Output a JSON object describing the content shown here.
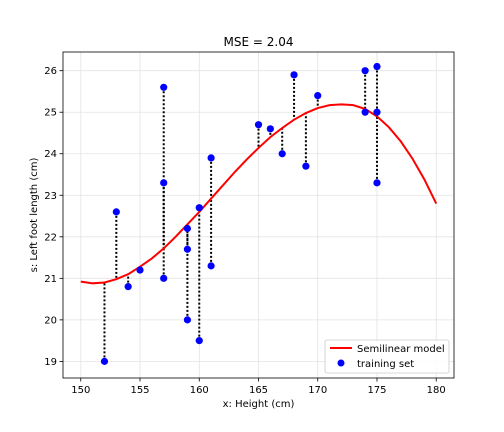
{
  "chart_data": {
    "type": "scatter",
    "title": "MSE = 2.04",
    "xlabel": "x: Height (cm)",
    "ylabel": "s: Left foot length (cm)",
    "xlim": [
      148.5,
      181.5
    ],
    "ylim": [
      18.6,
      26.45
    ],
    "xticks": [
      150,
      155,
      160,
      165,
      170,
      175,
      180
    ],
    "yticks": [
      19,
      20,
      21,
      22,
      23,
      24,
      25,
      26
    ],
    "grid": true,
    "legend_position": "bottom-right",
    "series": [
      {
        "name": "Semilinear model",
        "kind": "line",
        "color": "#ff0000",
        "curve_x": [
          150,
          151,
          152,
          153,
          154,
          155,
          156,
          157,
          158,
          159,
          160,
          161,
          162,
          163,
          164,
          165,
          166,
          167,
          168,
          169,
          170,
          171,
          172,
          173,
          174,
          175,
          176,
          177,
          178,
          179,
          180
        ],
        "curve_y": [
          20.92,
          20.88,
          20.9,
          20.98,
          21.1,
          21.28,
          21.48,
          21.72,
          22.0,
          22.3,
          22.6,
          22.92,
          23.24,
          23.56,
          23.86,
          24.14,
          24.4,
          24.62,
          24.82,
          24.98,
          25.1,
          25.17,
          25.19,
          25.17,
          25.08,
          24.9,
          24.64,
          24.3,
          23.88,
          23.38,
          22.8
        ]
      },
      {
        "name": "training set",
        "kind": "points",
        "color": "#0000ff",
        "x": [
          152,
          153,
          154,
          155,
          157,
          157,
          157,
          159,
          159,
          159,
          160,
          160,
          161,
          161,
          165,
          166,
          167,
          168,
          169,
          170,
          174,
          174,
          175,
          175,
          175
        ],
        "y": [
          19.0,
          22.6,
          20.8,
          21.2,
          25.6,
          23.3,
          21.0,
          22.2,
          21.7,
          20.0,
          22.7,
          19.5,
          23.9,
          21.3,
          24.7,
          24.6,
          24.0,
          25.9,
          23.7,
          25.4,
          26.0,
          25.0,
          26.1,
          25.0,
          23.3
        ]
      }
    ],
    "residuals": {
      "style": "dotted",
      "color": "#000000"
    }
  }
}
